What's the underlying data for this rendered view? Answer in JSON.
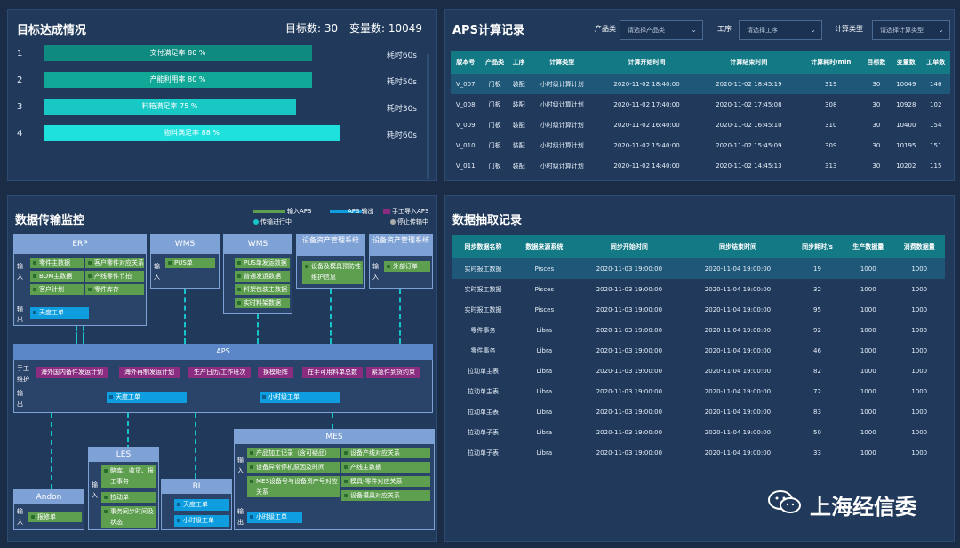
{
  "goal": {
    "title": "目标达成情况",
    "target_label": "目标数: 30",
    "var_label": "变量数: 10049",
    "rows": [
      {
        "no": "1",
        "label": "交付满足率 80 %",
        "time": "耗时60s",
        "value": 0.8
      },
      {
        "no": "2",
        "label": "产能利用率 80 %",
        "time": "耗时50s",
        "value": 0.8
      },
      {
        "no": "3",
        "label": "料箱满足率 75 %",
        "time": "耗时30s",
        "value": 0.75
      },
      {
        "no": "4",
        "label": "物料满足率 88 %",
        "time": "耗时60s",
        "value": 0.88
      }
    ],
    "colors": [
      "#0f8a80",
      "#12a898",
      "#17c8c4",
      "#1ee0dc"
    ]
  },
  "aps": {
    "title": "APS计算记录",
    "filters": [
      {
        "label": "产品类",
        "placeholder": "请选择产品类"
      },
      {
        "label": "工序",
        "placeholder": "请选择工序"
      },
      {
        "label": "计算类型",
        "placeholder": "请选择计算类型"
      }
    ],
    "headers": [
      "版本号",
      "产品类",
      "工序",
      "计算类型",
      "计算开始时间",
      "计算结束时间",
      "计算耗时/min",
      "目标数",
      "变量数",
      "工单数"
    ],
    "rows": [
      [
        "V_007",
        "门板",
        "装配",
        "小时级计算计划",
        "2020-11-02 18:40:00",
        "2020-11-02 18:45:19",
        "319",
        "30",
        "10049",
        "146"
      ],
      [
        "V_008",
        "门板",
        "装配",
        "小时级计算计划",
        "2020-11-02 17:40:00",
        "2020-11-02 17:45:08",
        "308",
        "30",
        "10928",
        "102"
      ],
      [
        "V_009",
        "门板",
        "装配",
        "小时级计算计划",
        "2020-11-02 16:40:00",
        "2020-11-02 16:45:10",
        "310",
        "30",
        "10400",
        "154"
      ],
      [
        "V_010",
        "门板",
        "装配",
        "小时级计算计划",
        "2020-11-02 15:40:00",
        "2020-11-02 15:45:09",
        "309",
        "30",
        "10195",
        "151"
      ],
      [
        "V_011",
        "门板",
        "装配",
        "小时级计算计划",
        "2020-11-02 14:40:00",
        "2020-11-02 14:45:13",
        "313",
        "30",
        "10202",
        "115"
      ]
    ]
  },
  "extract": {
    "title": "数据抽取记录",
    "headers": [
      "同步数据名称",
      "数据来源系统",
      "同步开始时间",
      "同步结束时间",
      "同步耗时/s",
      "生产数据量",
      "消费数据量"
    ],
    "rows": [
      [
        "实时报工数据",
        "Pisces",
        "2020-11-03 19:00:00",
        "2020-11-04 19:00:00",
        "19",
        "1000",
        "1000"
      ],
      [
        "实时报工数据",
        "Pisces",
        "2020-11-03 19:00:00",
        "2020-11-04 19:00:00",
        "32",
        "1000",
        "1000"
      ],
      [
        "实时报工数据",
        "Pisces",
        "2020-11-03 19:00:00",
        "2020-11-04 19:00:00",
        "95",
        "1000",
        "1000"
      ],
      [
        "零件事务",
        "Libra",
        "2020-11-03 19:00:00",
        "2020-11-04 19:00:00",
        "92",
        "1000",
        "1000"
      ],
      [
        "零件事务",
        "Libra",
        "2020-11-03 19:00:00",
        "2020-11-04 19:00:00",
        "46",
        "1000",
        "1000"
      ],
      [
        "拉动单主表",
        "Libra",
        "2020-11-03 19:00:00",
        "2020-11-04 19:00:00",
        "82",
        "1000",
        "1000"
      ],
      [
        "拉动单主表",
        "Libra",
        "2020-11-03 19:00:00",
        "2020-11-04 19:00:00",
        "72",
        "1000",
        "1000"
      ],
      [
        "拉动单主表",
        "Libra",
        "2020-11-03 19:00:00",
        "2020-11-04 19:00:00",
        "83",
        "1000",
        "1000"
      ],
      [
        "拉动单子表",
        "Libra",
        "2020-11-03 19:00:00",
        "2020-11-04 19:00:00",
        "50",
        "1000",
        "1000"
      ],
      [
        "拉动单子表",
        "Libra",
        "2020-11-03 19:00:00",
        "2020-11-04 19:00:00",
        "33",
        "1000",
        "1000"
      ]
    ]
  },
  "monitor": {
    "title": "数据传输监控",
    "legend": {
      "in": "输入APS",
      "out": "APS 输出",
      "manual": "手工导入APS",
      "running": "传输进行中",
      "stopped": "停止传输中"
    },
    "erp": {
      "title": "ERP",
      "in_label": "输入",
      "out_label": "输出",
      "items": [
        "零件主数据",
        "客户零件对应关系",
        "BOM主数据",
        "产线零件节拍",
        "客户计划",
        "零件库存"
      ],
      "out": "天度工单"
    },
    "wms1": {
      "title": "WMS",
      "in_label": "输入",
      "items": [
        "PUS单"
      ]
    },
    "wms2": {
      "title": "WMS",
      "items": [
        "PUS单发运数据",
        "普通发运数据",
        "料架包装主数据",
        "实时料架数据"
      ]
    },
    "eam1": {
      "title": "设备资产管理系统",
      "items": [
        "设备及模具预防性维护信息"
      ]
    },
    "eam2": {
      "title": "设备资产管理系统",
      "in_label": "输入",
      "items": [
        "外部订单"
      ]
    },
    "aps_label": "APS",
    "manual_label": "手工维护",
    "manual_items": [
      "海外国内备件发运计划",
      "海外再制发运计划",
      "生产日历/工作班次",
      "换模矩阵",
      "在手可用料单总数",
      "紧急件到货约束"
    ],
    "out_label": "输出",
    "out_items": [
      "天度工单",
      "小时级工单"
    ],
    "andon": {
      "title": "Andon",
      "in_label": "输入",
      "items": [
        "报修单"
      ]
    },
    "les": {
      "title": "LES",
      "in_label": "输入",
      "items": [
        "略库、收货、报工事务",
        "拉动单",
        "事务同步时间及状态"
      ]
    },
    "bi": {
      "title": "BI",
      "items": [
        "天度工单",
        "小时级工单"
      ]
    },
    "mes": {
      "title": "MES",
      "in_label": "输入",
      "out_label": "输出",
      "items": [
        "产品加工记录（含可疑品）",
        "设备产线对应关系",
        "设备异常停机原因及时间",
        "产线主数据",
        "MES设备号与设备资产号对应关系",
        "模具-零件对应关系",
        "设备模具对应关系"
      ],
      "out": "小时级工单"
    }
  },
  "watermark": "上海经信委"
}
